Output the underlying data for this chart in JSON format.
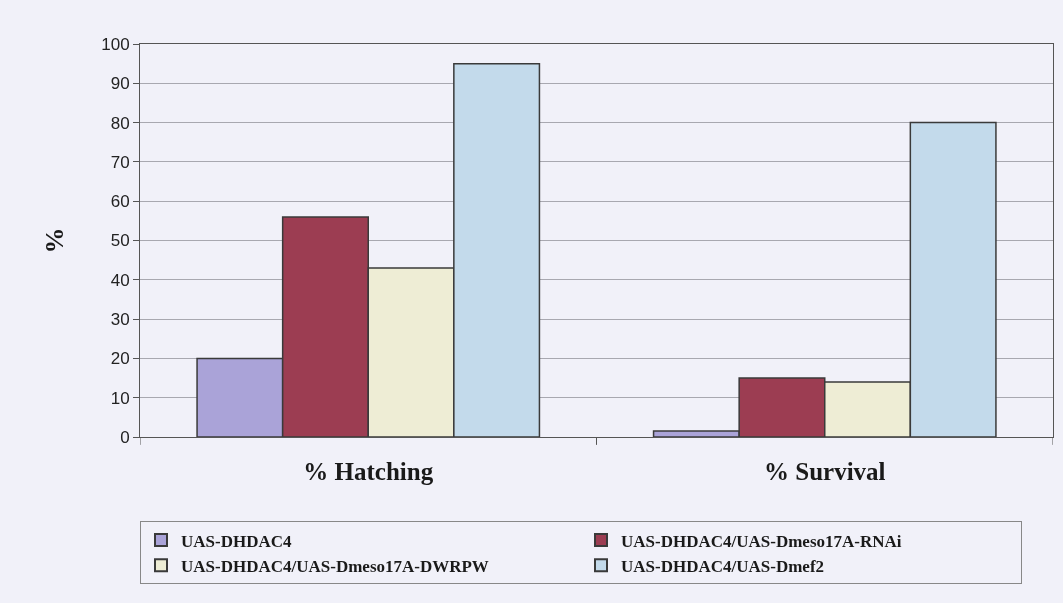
{
  "chart_data": {
    "type": "bar",
    "ylabel": "%",
    "categories": [
      "% Hatching",
      "% Survival"
    ],
    "series": [
      {
        "name": "UAS-DHDAC4",
        "color": "#aaa3d8",
        "values": [
          20,
          1.5
        ]
      },
      {
        "name": "UAS-DHDAC4/UAS-Dmeso17A-RNAi",
        "color": "#9c3d52",
        "values": [
          56,
          15
        ]
      },
      {
        "name": "UAS-DHDAC4/UAS-Dmeso17A-DWRPW",
        "color": "#eeedd5",
        "values": [
          43,
          14
        ]
      },
      {
        "name": "UAS-DHDAC4/UAS-Dmef2",
        "color": "#c3daeb",
        "values": [
          95,
          80
        ]
      }
    ],
    "ylim": [
      0,
      100
    ],
    "yticks": [
      0,
      10,
      20,
      30,
      40,
      50,
      60,
      70,
      80,
      90,
      100
    ],
    "grid": "y",
    "legend": "bottom"
  }
}
